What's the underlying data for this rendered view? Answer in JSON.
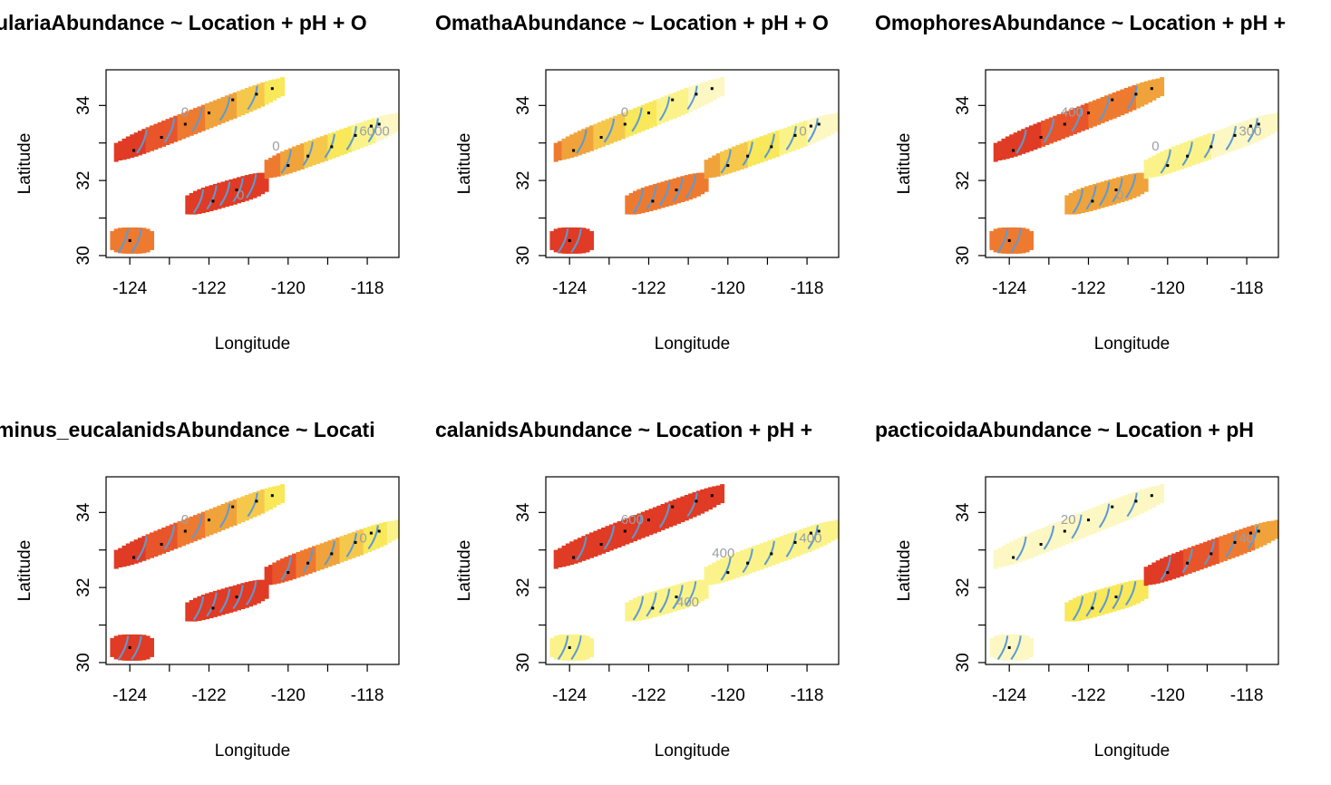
{
  "chart_data": [
    {
      "type": "heatmap",
      "title": "ulariaAbundance ~ Location + pH + O",
      "xlabel": "Longitude",
      "ylabel": "Latitude",
      "xlim": [
        -124.6,
        -117.2
      ],
      "ylim": [
        29.95,
        34.95
      ],
      "xticks": [
        "-124",
        "-122",
        "-120",
        "-118"
      ],
      "yticks": [
        "30",
        "32",
        "34"
      ],
      "legend": "none",
      "grid": false,
      "contour_labels": [
        "6000",
        "0",
        "0",
        "0"
      ],
      "stations_lon": [
        -123.9,
        -123.2,
        -122.6,
        -122.0,
        -121.4,
        -120.8,
        -120.4,
        -121.9,
        -121.3,
        -120.0,
        -119.5,
        -118.9,
        -118.3,
        -117.9,
        -117.7,
        -124.0
      ],
      "stations_lat": [
        32.8,
        33.15,
        33.5,
        33.8,
        34.15,
        34.3,
        34.45,
        31.45,
        31.75,
        32.4,
        32.65,
        32.9,
        33.2,
        33.45,
        33.5,
        30.4
      ]
    },
    {
      "type": "heatmap",
      "title": "OmathaAbundance ~ Location + pH + O",
      "xlabel": "Longitude",
      "ylabel": "Latitude",
      "xlim": [
        -124.6,
        -117.2
      ],
      "ylim": [
        29.95,
        34.95
      ],
      "xticks": [
        "-124",
        "-122",
        "-120",
        "-118"
      ],
      "yticks": [
        "30",
        "32",
        "34"
      ],
      "legend": "none",
      "grid": false,
      "contour_labels": [
        "0",
        "0"
      ],
      "stations_lon": [
        -123.9,
        -123.2,
        -122.6,
        -122.0,
        -121.4,
        -120.8,
        -120.4,
        -121.9,
        -121.3,
        -120.0,
        -119.5,
        -118.9,
        -118.3,
        -117.9,
        -117.7,
        -124.0
      ],
      "stations_lat": [
        32.8,
        33.15,
        33.5,
        33.8,
        34.15,
        34.3,
        34.45,
        31.45,
        31.75,
        32.4,
        32.65,
        32.9,
        33.2,
        33.45,
        33.5,
        30.4
      ]
    },
    {
      "type": "heatmap",
      "title": "OmophoresAbundance ~ Location + pH +",
      "xlabel": "Longitude",
      "ylabel": "Latitude",
      "xlim": [
        -124.6,
        -117.2
      ],
      "ylim": [
        29.95,
        34.95
      ],
      "xticks": [
        "-124",
        "-122",
        "-120",
        "-118"
      ],
      "yticks": [
        "30",
        "32",
        "34"
      ],
      "legend": "none",
      "grid": false,
      "contour_labels": [
        "300",
        "400",
        "0",
        "0"
      ],
      "stations_lon": [
        -123.9,
        -123.2,
        -122.6,
        -122.0,
        -121.4,
        -120.8,
        -120.4,
        -121.9,
        -121.3,
        -120.0,
        -119.5,
        -118.9,
        -118.3,
        -117.9,
        -117.7,
        -124.0
      ],
      "stations_lat": [
        32.8,
        33.15,
        33.5,
        33.8,
        34.15,
        34.3,
        34.45,
        31.45,
        31.75,
        32.4,
        32.65,
        32.9,
        33.2,
        33.45,
        33.5,
        30.4
      ]
    },
    {
      "type": "heatmap",
      "title": "minus_eucalanidsAbundance ~ Locati",
      "xlabel": "Longitude",
      "ylabel": "Latitude",
      "xlim": [
        -124.6,
        -117.2
      ],
      "ylim": [
        29.95,
        34.95
      ],
      "xticks": [
        "-124",
        "-122",
        "-120",
        "-118"
      ],
      "yticks": [
        "30",
        "32",
        "34"
      ],
      "legend": "none",
      "grid": false,
      "contour_labels": [
        "0",
        "0"
      ],
      "stations_lon": [
        -123.9,
        -123.2,
        -122.6,
        -122.0,
        -121.4,
        -120.8,
        -120.4,
        -121.9,
        -121.3,
        -120.0,
        -119.5,
        -118.9,
        -118.3,
        -117.9,
        -117.7,
        -124.0
      ],
      "stations_lat": [
        32.8,
        33.15,
        33.5,
        33.8,
        34.15,
        34.3,
        34.45,
        31.45,
        31.75,
        32.4,
        32.65,
        32.9,
        33.2,
        33.45,
        33.5,
        30.4
      ]
    },
    {
      "type": "heatmap",
      "title": "calanidsAbundance ~ Location + pH +",
      "xlabel": "Longitude",
      "ylabel": "Latitude",
      "xlim": [
        -124.6,
        -117.2
      ],
      "ylim": [
        29.95,
        34.95
      ],
      "xticks": [
        "-124",
        "-122",
        "-120",
        "-118"
      ],
      "yticks": [
        "30",
        "32",
        "34"
      ],
      "legend": "none",
      "grid": false,
      "contour_labels": [
        "400",
        "600",
        "400",
        "400"
      ],
      "stations_lon": [
        -123.9,
        -123.2,
        -122.6,
        -122.0,
        -121.4,
        -120.8,
        -120.4,
        -121.9,
        -121.3,
        -120.0,
        -119.5,
        -118.9,
        -118.3,
        -117.9,
        -117.7,
        -124.0
      ],
      "stations_lat": [
        32.8,
        33.15,
        33.5,
        33.8,
        34.15,
        34.3,
        34.45,
        31.45,
        31.75,
        32.4,
        32.65,
        32.9,
        33.2,
        33.45,
        33.5,
        30.4
      ]
    },
    {
      "type": "heatmap",
      "title": "pacticoidaAbundance ~ Location + pH",
      "xlabel": "Longitude",
      "ylabel": "Latitude",
      "xlim": [
        -124.6,
        -117.2
      ],
      "ylim": [
        29.95,
        34.95
      ],
      "xticks": [
        "-124",
        "-122",
        "-120",
        "-118"
      ],
      "yticks": [
        "30",
        "32",
        "34"
      ],
      "legend": "none",
      "grid": false,
      "contour_labels": [
        "40",
        "20"
      ],
      "stations_lon": [
        -123.9,
        -123.2,
        -122.6,
        -122.0,
        -121.4,
        -120.8,
        -120.4,
        -121.9,
        -121.3,
        -120.0,
        -119.5,
        -118.9,
        -118.3,
        -117.9,
        -117.7,
        -124.0
      ],
      "stations_lat": [
        32.8,
        33.15,
        33.5,
        33.8,
        34.15,
        34.3,
        34.45,
        31.45,
        31.75,
        32.4,
        32.65,
        32.9,
        33.2,
        33.45,
        33.5,
        30.4
      ]
    }
  ]
}
